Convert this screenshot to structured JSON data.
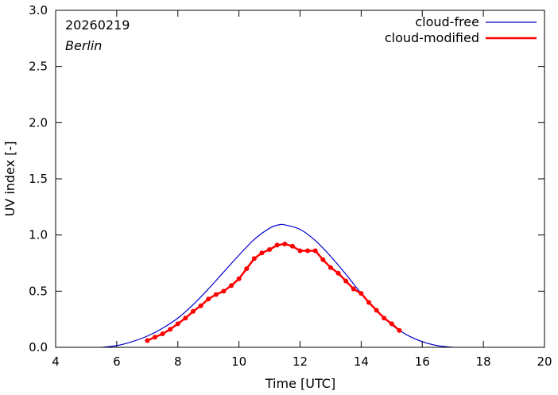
{
  "chart_data": {
    "type": "line",
    "title": "",
    "xlabel": "Time  [UTC]",
    "ylabel": "UV index  [-]",
    "xlim": [
      4,
      20
    ],
    "ylim": [
      0,
      3.0
    ],
    "xticks": [
      "4",
      "6",
      "8",
      "10",
      "12",
      "14",
      "16",
      "18",
      "20"
    ],
    "yticks": [
      "0.0",
      "0.5",
      "1.0",
      "1.5",
      "2.0",
      "2.5",
      "3.0"
    ],
    "annotations": {
      "date": "20260219",
      "location": "Berlin"
    },
    "legend_position": "top-right",
    "series": [
      {
        "name": "cloud-free",
        "color": "#0000cc",
        "marker": "none",
        "x": [
          5.5,
          6.0,
          6.5,
          7.0,
          7.5,
          8.0,
          8.5,
          9.0,
          9.5,
          10.0,
          10.5,
          11.0,
          11.3,
          11.5,
          12.0,
          12.5,
          13.0,
          13.5,
          14.0,
          14.5,
          15.0,
          15.5,
          16.0,
          16.5,
          17.0
        ],
        "y": [
          0.0,
          0.015,
          0.05,
          0.1,
          0.17,
          0.26,
          0.38,
          0.52,
          0.67,
          0.82,
          0.96,
          1.06,
          1.09,
          1.09,
          1.05,
          0.95,
          0.81,
          0.65,
          0.48,
          0.33,
          0.2,
          0.11,
          0.05,
          0.015,
          0.0
        ]
      },
      {
        "name": "cloud-modified",
        "color": "#ff0000",
        "marker": "circle",
        "x": [
          7.0,
          7.25,
          7.5,
          7.75,
          8.0,
          8.25,
          8.5,
          8.75,
          9.0,
          9.25,
          9.5,
          9.75,
          10.0,
          10.25,
          10.5,
          10.75,
          11.0,
          11.25,
          11.5,
          11.75,
          12.0,
          12.25,
          12.5,
          12.75,
          13.0,
          13.25,
          13.5,
          13.75,
          14.0,
          14.25,
          14.5,
          14.75,
          15.0,
          15.25
        ],
        "y": [
          0.06,
          0.09,
          0.12,
          0.16,
          0.21,
          0.26,
          0.32,
          0.37,
          0.43,
          0.47,
          0.5,
          0.55,
          0.61,
          0.7,
          0.79,
          0.84,
          0.87,
          0.91,
          0.92,
          0.9,
          0.86,
          0.86,
          0.86,
          0.78,
          0.71,
          0.66,
          0.59,
          0.52,
          0.48,
          0.4,
          0.33,
          0.26,
          0.21,
          0.15
        ]
      }
    ]
  }
}
